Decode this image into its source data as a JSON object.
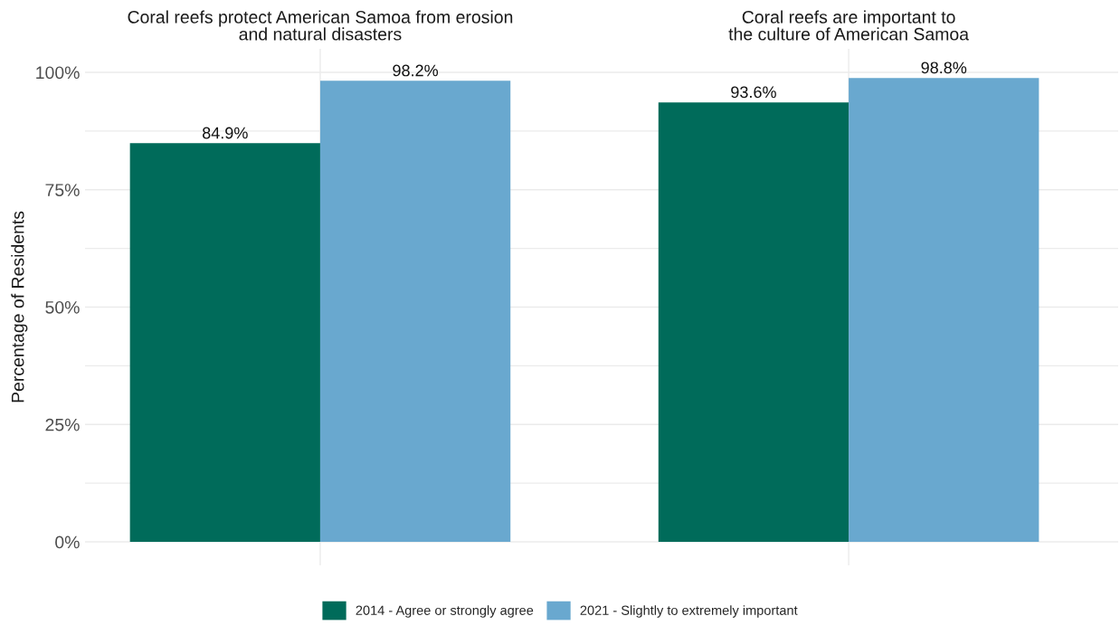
{
  "chart_data": {
    "type": "bar",
    "ylabel": "Percentage of Residents",
    "categories": [
      "Coral reefs protect American Samoa from erosion\nand natural disasters",
      "Coral reefs are important to\nthe culture of American Samoa"
    ],
    "series": [
      {
        "name": "2014 - Agree or strongly agree",
        "color": "#006b5a",
        "values": [
          84.9,
          93.6
        ],
        "value_labels": [
          "84.9%",
          "93.6%"
        ]
      },
      {
        "name": "2021 - Slightly to extremely important",
        "color": "#69a8cf",
        "values": [
          98.2,
          98.8
        ],
        "value_labels": [
          "98.2%",
          "98.8%"
        ]
      }
    ],
    "ylim": [
      -5,
      105
    ],
    "yticks": [
      {
        "value": 0,
        "label": "0%"
      },
      {
        "value": 12.5,
        "label": null
      },
      {
        "value": 25,
        "label": "25%"
      },
      {
        "value": 37.5,
        "label": null
      },
      {
        "value": 50,
        "label": "50%"
      },
      {
        "value": 62.5,
        "label": null
      },
      {
        "value": 75,
        "label": "75%"
      },
      {
        "value": 87.5,
        "label": null
      },
      {
        "value": 100,
        "label": "100%"
      }
    ],
    "grid": true,
    "legend": "bottom"
  }
}
